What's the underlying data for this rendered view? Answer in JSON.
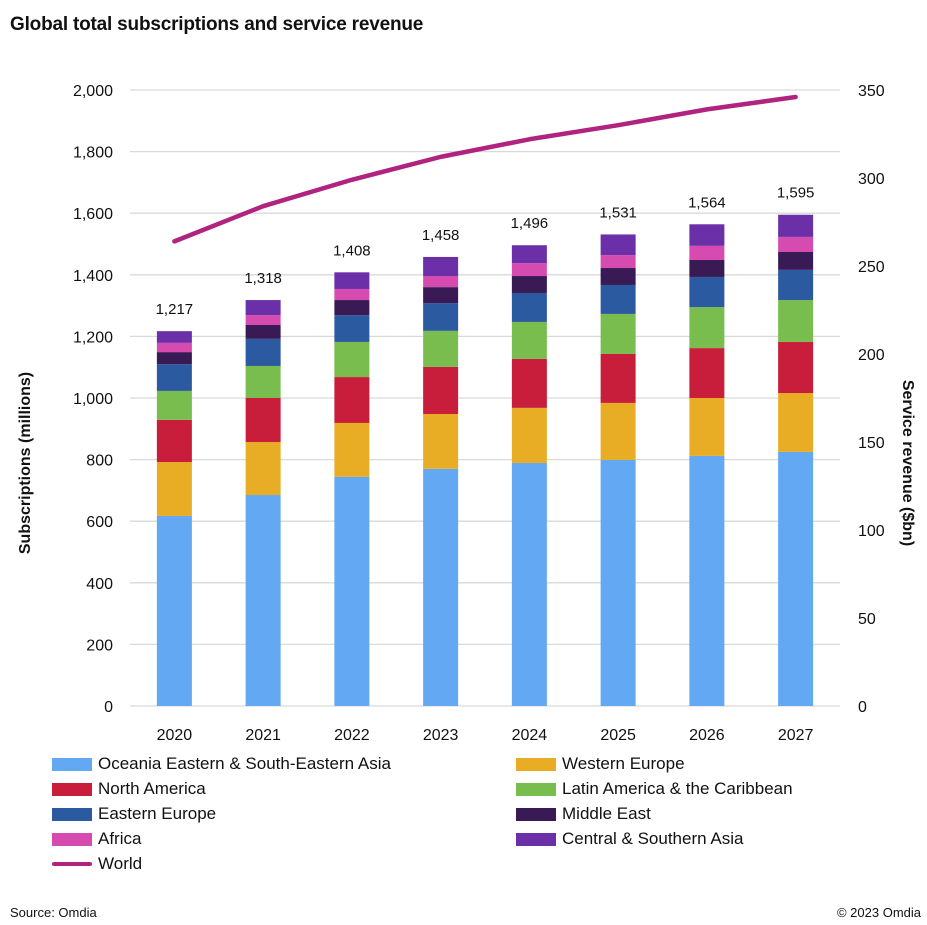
{
  "chart_data": {
    "type": "bar",
    "subtype": "stacked-bar-with-line",
    "title": "Global total subscriptions and service revenue",
    "xlabel": "",
    "ylabel": "Subscriptions (millions)",
    "y2label": "Service revenue ($bn)",
    "ylim": [
      0,
      2000
    ],
    "y2lim": [
      0,
      350
    ],
    "yticks": [
      "0",
      "200",
      "400",
      "600",
      "800",
      "1,000",
      "1,200",
      "1,400",
      "1,600",
      "1,800",
      "2,000"
    ],
    "y2ticks": [
      "0",
      "50",
      "100",
      "150",
      "200",
      "250",
      "300",
      "350"
    ],
    "grid": true,
    "legend_position": "bottom",
    "categories": [
      "2020",
      "2021",
      "2022",
      "2023",
      "2024",
      "2025",
      "2026",
      "2027"
    ],
    "totals": [
      1217,
      1318,
      1408,
      1458,
      1496,
      1531,
      1564,
      1595
    ],
    "total_labels": [
      "1,217",
      "1,318",
      "1,408",
      "1,458",
      "1,496",
      "1,531",
      "1,564",
      "1,595"
    ],
    "series": [
      {
        "name": "Oceania Eastern & South-Eastern Asia",
        "color": "#62a8f3",
        "axis": "left",
        "values": [
          617,
          685,
          744,
          770,
          789,
          799,
          812,
          825
        ]
      },
      {
        "name": "Western Europe",
        "color": "#e8ad24",
        "axis": "left",
        "values": [
          175,
          172,
          175,
          178,
          179,
          185,
          188,
          191
        ]
      },
      {
        "name": "North America",
        "color": "#c81e3c",
        "axis": "left",
        "values": [
          137,
          143,
          149,
          153,
          159,
          159,
          162,
          166
        ]
      },
      {
        "name": "Latin America & the Caribbean",
        "color": "#78bd4e",
        "axis": "left",
        "values": [
          94,
          104,
          114,
          117,
          120,
          130,
          133,
          136
        ]
      },
      {
        "name": "Eastern Europe",
        "color": "#2c5aa0",
        "axis": "left",
        "values": [
          87,
          88,
          87,
          90,
          94,
          94,
          98,
          98
        ]
      },
      {
        "name": "Middle East",
        "color": "#3a1a55",
        "axis": "left",
        "values": [
          39,
          45,
          49,
          52,
          55,
          55,
          55,
          58
        ]
      },
      {
        "name": "Africa",
        "color": "#d64bb0",
        "axis": "left",
        "values": [
          30,
          32,
          36,
          36,
          42,
          42,
          46,
          49
        ]
      },
      {
        "name": "Central & Southern Asia",
        "color": "#6b2fa8",
        "axis": "left",
        "values": [
          38,
          49,
          54,
          62,
          58,
          67,
          70,
          72
        ]
      }
    ],
    "line_series": [
      {
        "name": "World",
        "color": "#b0237e",
        "axis": "right",
        "values": [
          264,
          284,
          299,
          312,
          322,
          330,
          339,
          346
        ]
      }
    ]
  },
  "legend": [
    {
      "label": "Oceania Eastern & South-Eastern Asia",
      "color": "#62a8f3",
      "kind": "bar"
    },
    {
      "label": "Western Europe",
      "color": "#e8ad24",
      "kind": "bar"
    },
    {
      "label": "North America",
      "color": "#c81e3c",
      "kind": "bar"
    },
    {
      "label": "Latin America & the Caribbean",
      "color": "#78bd4e",
      "kind": "bar"
    },
    {
      "label": "Eastern Europe",
      "color": "#2c5aa0",
      "kind": "bar"
    },
    {
      "label": "Middle East",
      "color": "#3a1a55",
      "kind": "bar"
    },
    {
      "label": "Africa",
      "color": "#d64bb0",
      "kind": "bar"
    },
    {
      "label": "Central & Southern Asia",
      "color": "#6b2fa8",
      "kind": "bar"
    },
    {
      "label": "World",
      "color": "#b0237e",
      "kind": "line"
    }
  ],
  "footer": {
    "source": "Source: Omdia",
    "copyright": "© 2023 Omdia"
  }
}
